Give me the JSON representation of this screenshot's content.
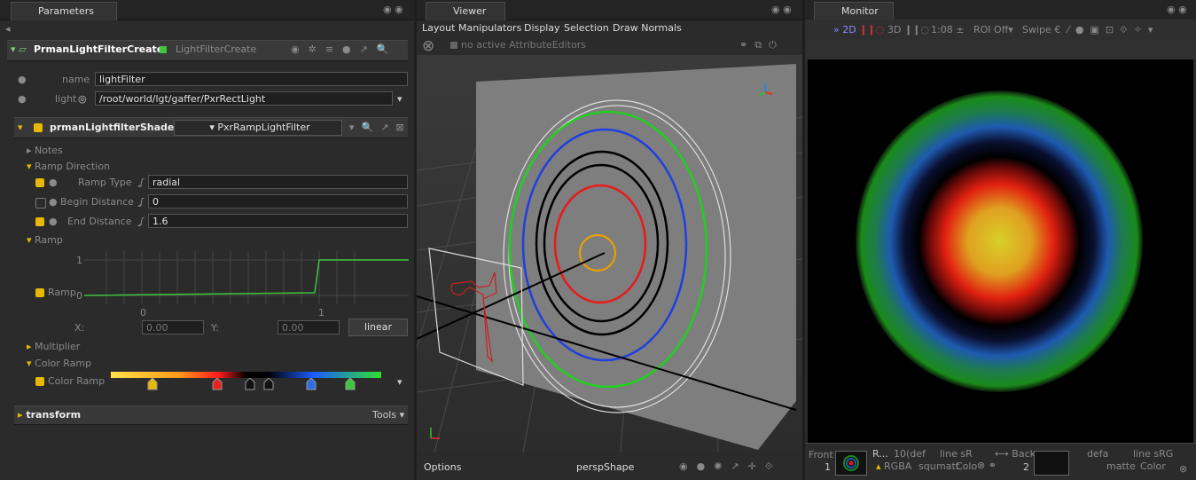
{
  "parameters": {
    "tab": "Parameters",
    "node_name": "PrmanLightFilterCreate",
    "node_type": "LightFilterCreate",
    "name_label": "name",
    "name_value": "lightFilter",
    "light_label": "light",
    "light_value": "/root/world/lgt/gaffer/PxrRectLight",
    "shader_label": "prmanLightfilterShader",
    "shader_value": "PxrRampLightFilter",
    "notes": "Notes",
    "ramp_direction": "Ramp Direction",
    "ramp_type_label": "Ramp Type",
    "ramp_type_value": "radial",
    "begin_label": "Begin Distance",
    "begin_value": "0",
    "end_label": "End Distance",
    "end_value": "1.6",
    "ramp_section": "Ramp",
    "ramp_label": "Ramp",
    "ramp_y_ticks": [
      "1",
      "0"
    ],
    "ramp_x_ticks": [
      "0",
      "1"
    ],
    "x_label": "X:",
    "x_value": "0.00",
    "y_label": "Y:",
    "y_value": "0.00",
    "interp": "linear",
    "multiplier": "Multiplier",
    "color_ramp_section": "Color Ramp",
    "color_ramp_label": "Color Ramp",
    "transform": "transform",
    "tools": "Tools"
  },
  "viewer": {
    "tab": "Viewer",
    "menu": [
      "Layout",
      "Manipulators",
      "Display",
      "Selection",
      "Draw Normals"
    ],
    "status": "no active AttributeEditors",
    "options": "Options",
    "camera": "perspShape"
  },
  "monitor": {
    "tab": "Monitor",
    "toolbar": [
      "2D",
      "3D",
      "1:08",
      "ROI Off",
      "Swipe"
    ],
    "front": "Front",
    "front_index": "1",
    "front_name": "R...",
    "front_res": "10(def",
    "front_lut": "line sR",
    "front_channels": "RGBA",
    "front_squ": "squ",
    "front_matte": "matt",
    "front_color": "Colo",
    "back": "Back",
    "back_index": "2",
    "back_res": "defa",
    "back_lut": "line sRG",
    "back_matte": "matte",
    "back_color": "Color"
  }
}
